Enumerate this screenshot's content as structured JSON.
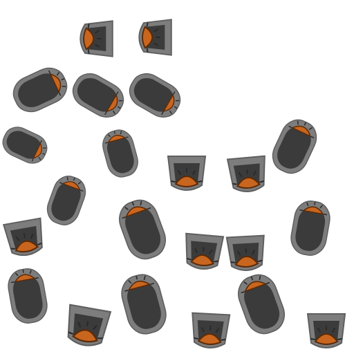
{
  "scene": {
    "background": "#ffffff",
    "palette": {
      "outer": "#7d7d7d",
      "outline": "#555555",
      "inner": "#3b3b3b",
      "cap": "#c8651e",
      "cap_dark": "#5a2a08",
      "spike": "#2a2a2a"
    },
    "icons": {
      "long_piece": "capsule-piece-icon",
      "short_piece": "cup-piece-icon"
    }
  }
}
